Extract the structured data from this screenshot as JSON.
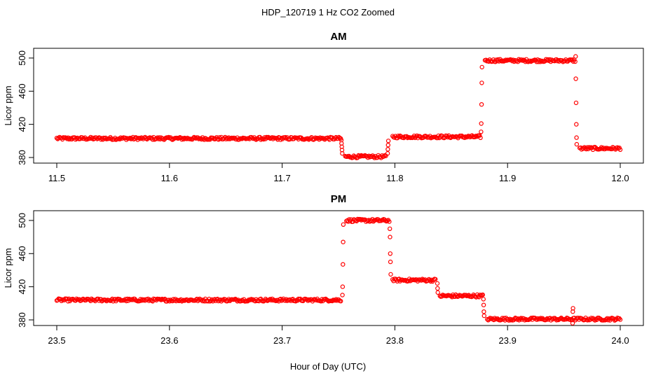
{
  "figure": {
    "title": "HDP_120719  1 Hz CO2 Zoomed",
    "xlabel": "Hour of Day (UTC)"
  },
  "chart_data": [
    {
      "type": "scatter",
      "title": "AM",
      "ylabel": "Licor ppm",
      "xlim": [
        11.5,
        12.0
      ],
      "ylim": [
        380,
        505
      ],
      "xticks": [
        "11.5",
        "11.6",
        "11.7",
        "11.8",
        "11.9",
        "12.0"
      ],
      "yticks": [
        "380",
        "420",
        "460",
        "500"
      ],
      "marker_color": "#ff0000",
      "segments": [
        {
          "x0": 11.5,
          "x1": 11.752,
          "y": 403
        },
        {
          "x0": 11.756,
          "x1": 11.792,
          "y": 381
        },
        {
          "x0": 11.798,
          "x1": 11.876,
          "y": 405
        },
        {
          "x0": 11.88,
          "x1": 11.96,
          "y": 497
        },
        {
          "x0": 11.964,
          "x1": 12.0,
          "y": 391
        }
      ],
      "transitions": [
        {
          "x": 11.753,
          "y": [
            401,
            397,
            393,
            389,
            385
          ]
        },
        {
          "x": 11.794,
          "y": [
            385,
            390,
            395,
            400
          ]
        },
        {
          "x": 11.877,
          "y": [
            411,
            421,
            444,
            470,
            489
          ]
        },
        {
          "x": 11.961,
          "y": [
            502,
            475,
            446,
            420,
            404,
            396
          ]
        }
      ]
    },
    {
      "type": "scatter",
      "title": "PM",
      "ylabel": "Licor ppm",
      "xlim": [
        23.5,
        24.0
      ],
      "ylim": [
        380,
        505
      ],
      "xticks": [
        "23.5",
        "23.6",
        "23.7",
        "23.8",
        "23.9",
        "24.0"
      ],
      "yticks": [
        "380",
        "420",
        "460",
        "500"
      ],
      "marker_color": "#ff0000",
      "segments": [
        {
          "x0": 23.5,
          "x1": 23.752,
          "y": 404
        },
        {
          "x0": 23.757,
          "x1": 23.795,
          "y": 500
        },
        {
          "x0": 23.798,
          "x1": 23.836,
          "y": 428
        },
        {
          "x0": 23.84,
          "x1": 23.878,
          "y": 409
        },
        {
          "x0": 23.882,
          "x1": 24.0,
          "y": 381
        }
      ],
      "transitions": [
        {
          "x": 23.754,
          "y": [
            410,
            420,
            447,
            474,
            495
          ]
        },
        {
          "x": 23.796,
          "y": [
            490,
            480,
            460,
            450,
            435
          ]
        },
        {
          "x": 23.838,
          "y": [
            424,
            418,
            413
          ]
        },
        {
          "x": 23.879,
          "y": [
            405,
            398,
            390,
            385
          ]
        },
        {
          "x": 23.958,
          "y": [
            376,
            390,
            394
          ]
        }
      ]
    }
  ]
}
